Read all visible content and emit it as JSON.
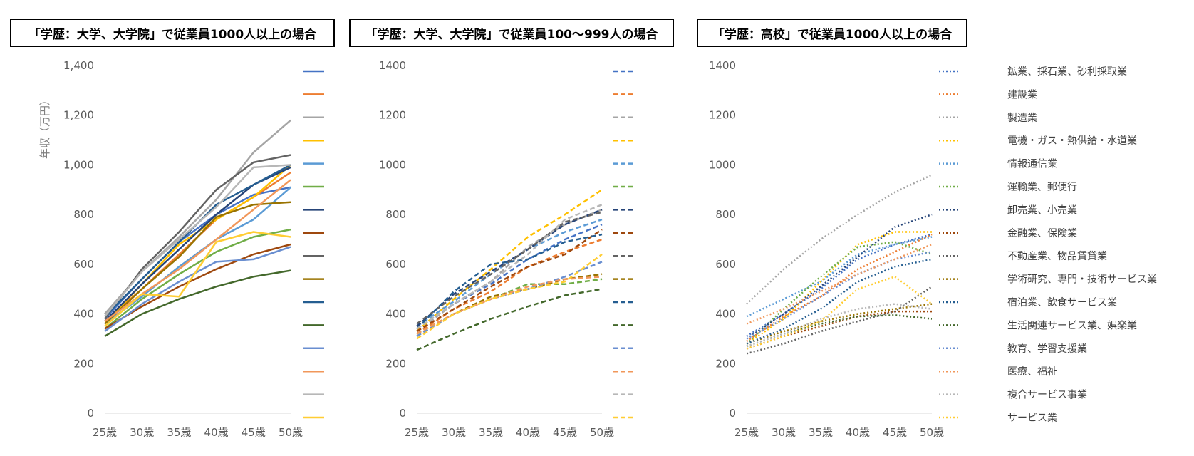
{
  "chart_data": [
    {
      "type": "line",
      "title": "「学歴：大学、大学院」で従業員1000人以上の場合",
      "ylabel": "年収（万円）",
      "xlabel": "",
      "categories": [
        "25歳",
        "30歳",
        "35歳",
        "40歳",
        "45歳",
        "50歳"
      ],
      "y_ticks": [
        "0",
        "200",
        "400",
        "600",
        "800",
        "1,000",
        "1,200",
        "1,400"
      ],
      "ylim": [
        0,
        1400
      ],
      "line_style": "solid",
      "series": [
        {
          "name": "鉱業、採石業、砂利採取業",
          "color": "#4472C4",
          "values": [
            380,
            540,
            690,
            800,
            880,
            910
          ]
        },
        {
          "name": "建設業",
          "color": "#ED7D31",
          "values": [
            370,
            500,
            640,
            780,
            870,
            970
          ]
        },
        {
          "name": "製造業",
          "color": "#A5A5A5",
          "values": [
            400,
            570,
            710,
            860,
            1050,
            1180
          ]
        },
        {
          "name": "電機・ガス・熱供給・水道業",
          "color": "#FFC000",
          "values": [
            360,
            520,
            680,
            780,
            870,
            1000
          ]
        },
        {
          "name": "情報通信業",
          "color": "#5B9BD5",
          "values": [
            360,
            470,
            590,
            700,
            780,
            910
          ]
        },
        {
          "name": "運輸業、郵便行",
          "color": "#70AD47",
          "values": [
            340,
            460,
            560,
            650,
            710,
            740
          ]
        },
        {
          "name": "卸売業、小売業",
          "color": "#264478",
          "values": [
            370,
            520,
            660,
            800,
            920,
            990
          ]
        },
        {
          "name": "金融業、保険業",
          "color": "#9E480E",
          "values": [
            340,
            430,
            510,
            580,
            640,
            680
          ]
        },
        {
          "name": "不動産業、物品賃貸業",
          "color": "#636363",
          "values": [
            380,
            580,
            730,
            900,
            1010,
            1040
          ]
        },
        {
          "name": "学術研究、専門・技術サービス業",
          "color": "#997300",
          "values": [
            360,
            500,
            630,
            790,
            840,
            850
          ]
        },
        {
          "name": "宿泊業、飲食サービス業",
          "color": "#255E91",
          "values": [
            390,
            540,
            690,
            840,
            920,
            1000
          ]
        },
        {
          "name": "生活関連サービス業、娯楽業",
          "color": "#43682B",
          "values": [
            310,
            400,
            460,
            510,
            550,
            575
          ]
        },
        {
          "name": "教育、学習支援業",
          "color": "#698ED0",
          "values": [
            330,
            440,
            530,
            610,
            620,
            670
          ]
        },
        {
          "name": "医療、福祉",
          "color": "#F1975A",
          "values": [
            370,
            480,
            580,
            700,
            820,
            940
          ]
        },
        {
          "name": "複合サービス事業",
          "color": "#B7B7B7",
          "values": [
            390,
            570,
            700,
            830,
            990,
            1000
          ]
        },
        {
          "name": "サービス業",
          "color": "#FFCD33",
          "values": [
            350,
            480,
            470,
            690,
            730,
            710
          ]
        }
      ]
    },
    {
      "type": "line",
      "title": "「学歴：大学、大学院」で従業員100～999人の場合",
      "ylabel": "",
      "xlabel": "",
      "categories": [
        "25歳",
        "30歳",
        "35歳",
        "40歳",
        "45歳",
        "50歳"
      ],
      "y_ticks": [
        "0",
        "200",
        "400",
        "600",
        "800",
        "1000",
        "1200",
        "1400"
      ],
      "ylim": [
        0,
        1400
      ],
      "line_style": "dashed",
      "series": [
        {
          "name": "鉱業、採石業、砂利採取業",
          "color": "#4472C4",
          "values": [
            340,
            440,
            520,
            620,
            700,
            760
          ]
        },
        {
          "name": "建設業",
          "color": "#ED7D31",
          "values": [
            320,
            420,
            490,
            590,
            650,
            700
          ]
        },
        {
          "name": "製造業",
          "color": "#A5A5A5",
          "values": [
            330,
            440,
            530,
            670,
            760,
            820
          ]
        },
        {
          "name": "電機・ガス・熱供給・水道業",
          "color": "#FFC000",
          "values": [
            330,
            460,
            580,
            710,
            800,
            900
          ]
        },
        {
          "name": "情報通信業",
          "color": "#5B9BD5",
          "values": [
            350,
            450,
            560,
            660,
            730,
            780
          ]
        },
        {
          "name": "運輸業、郵便行",
          "color": "#70AD47",
          "values": [
            310,
            400,
            460,
            520,
            520,
            540
          ]
        },
        {
          "name": "卸売業、小売業",
          "color": "#264478",
          "values": [
            350,
            480,
            570,
            660,
            760,
            820
          ]
        },
        {
          "name": "金融業、保険業",
          "color": "#9E480E",
          "values": [
            330,
            420,
            510,
            590,
            640,
            740
          ]
        },
        {
          "name": "不動産業、物品賃貸業",
          "color": "#636363",
          "values": [
            360,
            470,
            560,
            660,
            770,
            810
          ]
        },
        {
          "name": "学術研究、専門・技術サービス業",
          "color": "#997300",
          "values": [
            320,
            400,
            470,
            500,
            540,
            560
          ]
        },
        {
          "name": "宿泊業、飲食サービス業",
          "color": "#255E91",
          "values": [
            340,
            490,
            600,
            620,
            690,
            720
          ]
        },
        {
          "name": "生活関連サービス業、娯楽業",
          "color": "#43682B",
          "values": [
            255,
            320,
            380,
            430,
            475,
            500
          ]
        },
        {
          "name": "教育、学習支援業",
          "color": "#698ED0",
          "values": [
            310,
            400,
            460,
            500,
            550,
            610
          ]
        },
        {
          "name": "医療、福祉",
          "color": "#F1975A",
          "values": [
            320,
            400,
            460,
            510,
            540,
            550
          ]
        },
        {
          "name": "複合サービス事業",
          "color": "#B7B7B7",
          "values": [
            340,
            440,
            530,
            640,
            780,
            840
          ]
        },
        {
          "name": "サービス業",
          "color": "#FFCD33",
          "values": [
            300,
            400,
            460,
            500,
            530,
            640
          ]
        }
      ]
    },
    {
      "type": "line",
      "title": "「学歴：高校」で従業員1000人以上の場合",
      "ylabel": "",
      "xlabel": "",
      "categories": [
        "25歳",
        "30歳",
        "35歳",
        "40歳",
        "45歳",
        "50歳"
      ],
      "y_ticks": [
        "0",
        "200",
        "400",
        "600",
        "800",
        "1000",
        "1200",
        "1400"
      ],
      "ylim": [
        0,
        1400
      ],
      "line_style": "dotted",
      "series": [
        {
          "name": "鉱業、採石業、砂利採取業",
          "color": "#4472C4",
          "values": [
            310,
            400,
            500,
            620,
            680,
            720
          ]
        },
        {
          "name": "建設業",
          "color": "#ED7D31",
          "values": [
            290,
            390,
            470,
            580,
            650,
            720
          ]
        },
        {
          "name": "製造業",
          "color": "#A5A5A5",
          "values": [
            440,
            580,
            700,
            800,
            890,
            960
          ]
        },
        {
          "name": "電機・ガス・熱供給・水道業",
          "color": "#FFC000",
          "values": [
            280,
            380,
            530,
            680,
            730,
            730
          ]
        },
        {
          "name": "情報通信業",
          "color": "#5B9BD5",
          "values": [
            390,
            460,
            530,
            640,
            680,
            710
          ]
        },
        {
          "name": "運輸業、郵便行",
          "color": "#70AD47",
          "values": [
            280,
            420,
            550,
            670,
            690,
            640
          ]
        },
        {
          "name": "卸売業、小売業",
          "color": "#264478",
          "values": [
            300,
            400,
            510,
            630,
            750,
            800
          ]
        },
        {
          "name": "金融業、保険業",
          "color": "#9E480E",
          "values": [
            260,
            310,
            350,
            390,
            410,
            410
          ]
        },
        {
          "name": "不動産業、物品賃貸業",
          "color": "#636363",
          "values": [
            240,
            280,
            330,
            370,
            410,
            510
          ]
        },
        {
          "name": "学術研究、専門・技術サービス業",
          "color": "#997300",
          "values": [
            280,
            330,
            370,
            400,
            420,
            440
          ]
        },
        {
          "name": "宿泊業、飲食サービス業",
          "color": "#255E91",
          "values": [
            280,
            340,
            420,
            530,
            590,
            620
          ]
        },
        {
          "name": "生活関連サービス業、娯楽業",
          "color": "#43682B",
          "values": [
            270,
            320,
            360,
            390,
            395,
            380
          ]
        },
        {
          "name": "教育、学習支援業",
          "color": "#698ED0",
          "values": [
            300,
            380,
            470,
            560,
            620,
            650
          ]
        },
        {
          "name": "医療、福祉",
          "color": "#F1975A",
          "values": [
            360,
            420,
            490,
            560,
            620,
            680
          ]
        },
        {
          "name": "複合サービス事業",
          "color": "#B7B7B7",
          "values": [
            270,
            320,
            380,
            420,
            440,
            420
          ]
        },
        {
          "name": "サービス業",
          "color": "#FFCD33",
          "values": [
            260,
            310,
            370,
            500,
            550,
            440
          ]
        }
      ]
    }
  ],
  "legend_labels": [
    "鉱業、採石業、砂利採取業",
    "建設業",
    "製造業",
    "電機・ガス・熱供給・水道業",
    "情報通信業",
    "運輸業、郵便行",
    "卸売業、小売業",
    "金融業、保険業",
    "不動産業、物品賃貸業",
    "学術研究、専門・技術サービス業",
    "宿泊業、飲食サービス業",
    "生活関連サービス業、娯楽業",
    "教育、学習支援業",
    "医療、福祉",
    "複合サービス事業",
    "サービス業"
  ]
}
